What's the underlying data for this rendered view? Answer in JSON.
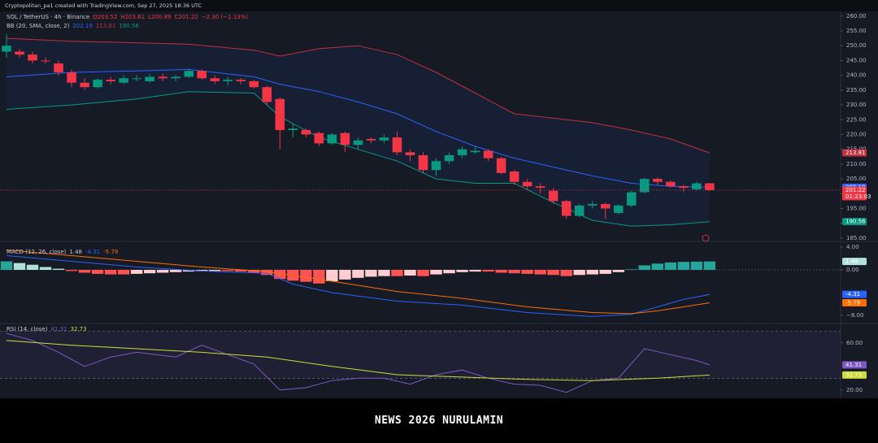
{
  "header": "Cryptopolitan_pa1 created with TradingView.com, Sep 27, 2025 18:36 UTC",
  "watermark": "NEWS 2026 NURULAMIN",
  "xlim": [
    -0.5,
    64
  ],
  "chart_data": [
    {
      "type": "candlestick",
      "title": "SOL / TetherUS · 4h · Binance",
      "ohlc": [
        "O203.52",
        "H203.61",
        "L200.89",
        "C201.22",
        "−2.30 (−1.13%)"
      ],
      "up_color": "#089981",
      "down_color": "#f23645",
      "countdown": "01:23:03",
      "open": [
        248,
        248,
        247,
        245,
        244,
        241,
        237.5,
        236,
        238.5,
        237.5,
        239,
        238,
        239.5,
        239,
        239.5,
        241.5,
        239,
        238,
        238.5,
        238,
        236,
        232,
        221.5,
        221.5,
        220.5,
        217,
        220.5,
        216.5,
        218.5,
        218,
        219,
        214,
        213,
        208,
        211,
        213,
        214,
        214.5,
        212,
        207.5,
        204,
        202.5,
        201,
        197.5,
        192.5,
        196,
        196.5,
        193.5,
        196,
        200.5,
        205,
        204,
        202.5,
        201.5,
        203.52
      ],
      "high": [
        254,
        249,
        248,
        246,
        245,
        242,
        239,
        239,
        239.5,
        240,
        240,
        240.5,
        240.5,
        240,
        242,
        242,
        240,
        239.5,
        239,
        238.5,
        236.5,
        232.5,
        223.5,
        222,
        221,
        220.5,
        221,
        219,
        219,
        220,
        221,
        215,
        214,
        212,
        214,
        216,
        216,
        215,
        212.5,
        208,
        205,
        203.5,
        202,
        198,
        196.5,
        197.5,
        197,
        196.5,
        201,
        205.5,
        205.5,
        204.5,
        203,
        204,
        203.61
      ],
      "low": [
        246,
        246,
        244,
        244,
        240,
        236,
        235,
        235.5,
        237,
        237,
        238,
        237.5,
        238,
        238,
        239,
        238.5,
        237,
        236.5,
        237,
        235.5,
        230,
        215,
        219,
        219,
        216,
        216.5,
        214,
        215,
        217,
        217,
        213,
        211,
        207,
        206,
        210,
        212,
        213.5,
        211,
        206.5,
        203,
        201.5,
        200,
        196.5,
        191.5,
        192,
        195,
        191.5,
        193,
        195.5,
        200,
        203,
        202,
        200.5,
        201,
        200.89
      ],
      "close": [
        250,
        247,
        245,
        244.8,
        241,
        237.5,
        236,
        238.5,
        238,
        239,
        239,
        239.5,
        239,
        239.5,
        241.5,
        239,
        238,
        238.5,
        238,
        236,
        231,
        221.5,
        222,
        220,
        217,
        220,
        216.5,
        218,
        218,
        219,
        214,
        213,
        208,
        211,
        213,
        215,
        214.5,
        212,
        207,
        204,
        202.5,
        202,
        197.5,
        192.5,
        196,
        196.5,
        195,
        196,
        200.5,
        205,
        204,
        202.5,
        202,
        203.5,
        201.22
      ],
      "ylim": [
        183.6,
        261.6
      ],
      "yticks": [
        {
          "value": 260,
          "label": "260.00"
        },
        {
          "value": 255,
          "label": "255.00"
        },
        {
          "value": 250,
          "label": "250.00"
        },
        {
          "value": 245,
          "label": "245.00"
        },
        {
          "value": 240,
          "label": "240.00"
        },
        {
          "value": 235,
          "label": "235.00"
        },
        {
          "value": 230,
          "label": "230.00"
        },
        {
          "value": 225,
          "label": "225.00"
        },
        {
          "value": 220,
          "label": "220.00"
        },
        {
          "value": 215,
          "label": "215.00"
        },
        {
          "value": 210,
          "label": "210.00"
        },
        {
          "value": 205,
          "label": "205.00"
        },
        {
          "value": 200,
          "label": "200.00"
        },
        {
          "value": 195,
          "label": "195.00"
        },
        {
          "value": 190,
          "label": "190.00"
        },
        {
          "value": 185,
          "label": "185.00"
        }
      ],
      "indicator_title": "BB (20, SMA, close, 2)",
      "fill_color": "#2962ff",
      "series": [
        {
          "color": "#2962ff",
          "x": [
            0,
            5,
            10,
            14,
            19,
            21,
            24,
            27,
            30,
            33,
            36,
            39,
            42,
            45,
            48,
            51,
            54
          ],
          "values": [
            239.5,
            241,
            241.5,
            242,
            239.5,
            237,
            234.5,
            231,
            227,
            221,
            216,
            212,
            209,
            206,
            203.5,
            202.5,
            202.19
          ]
        },
        {
          "color": "#c2303d",
          "x": [
            0,
            5,
            10,
            14,
            19,
            21,
            24,
            27,
            30,
            33,
            36,
            39,
            42,
            45,
            48,
            51,
            54
          ],
          "values": [
            252.5,
            251.5,
            251,
            250.5,
            248.5,
            246.5,
            249,
            250,
            247,
            241,
            234,
            227,
            225.5,
            224,
            221.5,
            218.5,
            213.81
          ]
        },
        {
          "color": "#089981",
          "x": [
            0,
            5,
            10,
            14,
            19,
            21,
            24,
            27,
            30,
            33,
            36,
            39,
            42,
            45,
            48,
            51,
            54
          ],
          "values": [
            228.5,
            230,
            232,
            234.5,
            234,
            226,
            219,
            215,
            211,
            205,
            203.5,
            203.5,
            197,
            191,
            189,
            189.5,
            190.56
          ]
        }
      ]
    },
    {
      "type": "bar",
      "title": "MACD (12, 26, close)",
      "values": [
        1.5,
        1.2,
        0.9,
        0.5,
        0.2,
        -0.2,
        -0.5,
        -0.7,
        -0.8,
        -0.8,
        -0.7,
        -0.6,
        -0.5,
        -0.4,
        -0.3,
        -0.25,
        -0.2,
        -0.2,
        -0.3,
        -0.5,
        -0.9,
        -1.6,
        -1.9,
        -2.1,
        -2.4,
        -2,
        -1.7,
        -1.4,
        -1.2,
        -1.1,
        -1.1,
        -1,
        -1.1,
        -0.8,
        -0.6,
        -0.4,
        -0.3,
        -0.3,
        -0.5,
        -0.6,
        -0.7,
        -0.8,
        -0.9,
        -1.1,
        -0.9,
        -0.8,
        -0.7,
        -0.4,
        0.1,
        0.8,
        1.1,
        1.3,
        1.4,
        1.45,
        1.48
      ],
      "colors": [
        "#26a69a",
        "#b2dfdb",
        "#ff5252",
        "#ffcdd2"
      ],
      "ylim": [
        -9,
        5
      ],
      "yticks": [
        {
          "value": 4,
          "label": "4.00"
        },
        {
          "value": 0,
          "label": "0.00"
        },
        {
          "value": -8,
          "label": "−8.00"
        }
      ],
      "series": [
        {
          "color": "#2962ff",
          "x": [
            0,
            5,
            10,
            15,
            20,
            22,
            25,
            30,
            35,
            40,
            45,
            48,
            50,
            52,
            54
          ],
          "values": [
            2.5,
            1.5,
            0.5,
            -0.2,
            -0.6,
            -2.5,
            -4,
            -5.5,
            -6.2,
            -7.5,
            -8.2,
            -7.8,
            -6.5,
            -5.2,
            -4.31
          ]
        },
        {
          "color": "#ff6d00",
          "x": [
            0,
            5,
            10,
            15,
            20,
            25,
            30,
            35,
            40,
            45,
            48,
            50,
            52,
            54
          ],
          "values": [
            3.5,
            2.5,
            1.5,
            0.5,
            -0.3,
            -2,
            -3.8,
            -5,
            -6.5,
            -7.5,
            -7.7,
            -7.2,
            -6.5,
            -5.79
          ]
        }
      ]
    },
    {
      "type": "line",
      "title": "RSI (14, close)",
      "bands": [
        70,
        30
      ],
      "band_color": "#7e57c2",
      "ylim": [
        13,
        75
      ],
      "yticks": [
        {
          "value": 60,
          "label": "60.00"
        },
        {
          "value": 20,
          "label": "20.00"
        }
      ],
      "series": [
        {
          "color": "#7e57c2",
          "x": [
            0,
            2,
            4,
            6,
            8,
            10,
            13,
            15,
            17,
            19,
            21,
            23,
            25,
            27,
            29,
            31,
            33,
            35,
            37,
            39,
            41,
            43,
            45,
            47,
            49,
            51,
            53,
            54
          ],
          "values": [
            68,
            62,
            52,
            40,
            48,
            52,
            48,
            58,
            50,
            42,
            20,
            22,
            28,
            30,
            30,
            25,
            33,
            37,
            30,
            25,
            24,
            18,
            28,
            30,
            55,
            50,
            45,
            41.31
          ]
        },
        {
          "color": "#cddc39",
          "x": [
            0,
            5,
            10,
            15,
            20,
            25,
            30,
            35,
            40,
            45,
            50,
            54
          ],
          "values": [
            62,
            58,
            55,
            52,
            48,
            40,
            33,
            31,
            29,
            28,
            30,
            32.73
          ]
        }
      ]
    }
  ]
}
